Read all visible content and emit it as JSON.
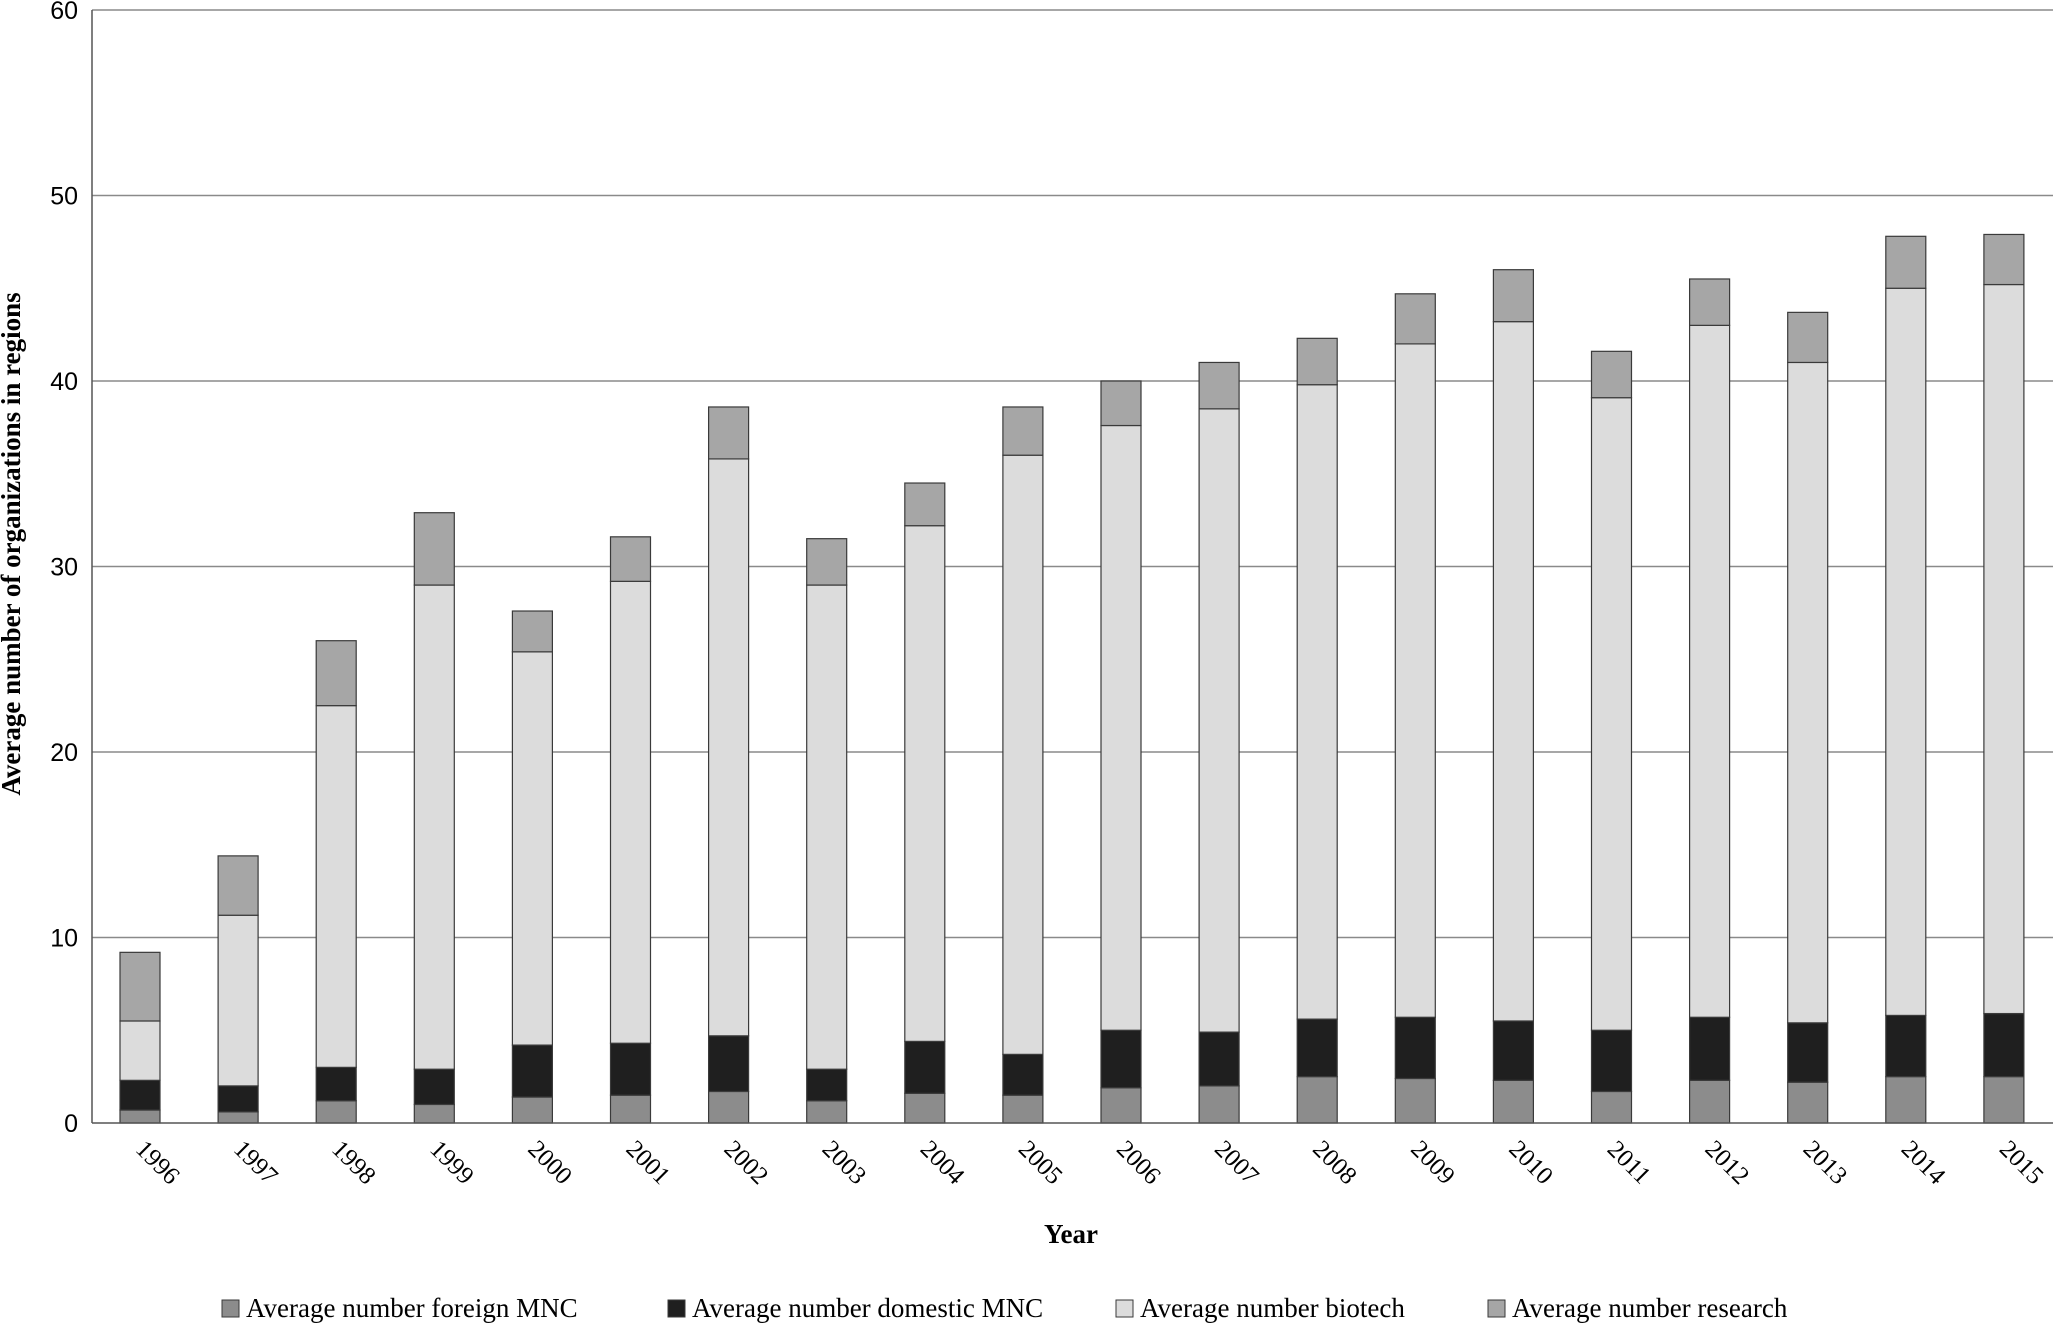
{
  "chart_data": {
    "type": "bar",
    "stacked": true,
    "title": "",
    "xlabel": "Year",
    "ylabel": "Average number of organizations in regions",
    "ylim": [
      0,
      60
    ],
    "yticks": [
      0,
      10,
      20,
      30,
      40,
      50,
      60
    ],
    "grid": true,
    "legend_position": "bottom",
    "categories": [
      "1996",
      "1997",
      "1998",
      "1999",
      "2000",
      "2001",
      "2002",
      "2003",
      "2004",
      "2005",
      "2006",
      "2007",
      "2008",
      "2009",
      "2010",
      "2011",
      "2012",
      "2013",
      "2014",
      "2015"
    ],
    "series": [
      {
        "name": "Average number foreign MNC",
        "color": "#8c8c8c",
        "values": [
          0.7,
          0.6,
          1.2,
          1.0,
          1.4,
          1.5,
          1.7,
          1.2,
          1.6,
          1.5,
          1.9,
          2.0,
          2.5,
          2.4,
          2.3,
          1.7,
          2.3,
          2.2,
          2.5,
          2.5
        ]
      },
      {
        "name": "Average number domestic MNC",
        "color": "#1f1f1f",
        "values": [
          1.6,
          1.4,
          1.8,
          1.9,
          2.8,
          2.8,
          3.0,
          1.7,
          2.8,
          2.2,
          3.1,
          2.9,
          3.1,
          3.3,
          3.2,
          3.3,
          3.4,
          3.2,
          3.3,
          3.4
        ]
      },
      {
        "name": "Average number biotech",
        "color": "#dcdcdc",
        "values": [
          3.2,
          9.2,
          19.5,
          26.1,
          21.2,
          24.9,
          31.1,
          26.1,
          27.8,
          32.3,
          32.6,
          33.6,
          34.2,
          36.3,
          37.7,
          34.1,
          37.3,
          35.6,
          39.2,
          39.3
        ]
      },
      {
        "name": "Average number research",
        "color": "#a6a6a6",
        "values": [
          3.7,
          3.2,
          3.5,
          3.9,
          2.2,
          2.4,
          2.8,
          2.5,
          2.3,
          2.6,
          2.4,
          2.5,
          2.5,
          2.7,
          2.8,
          2.5,
          2.5,
          2.7,
          2.8,
          2.7
        ]
      }
    ]
  }
}
